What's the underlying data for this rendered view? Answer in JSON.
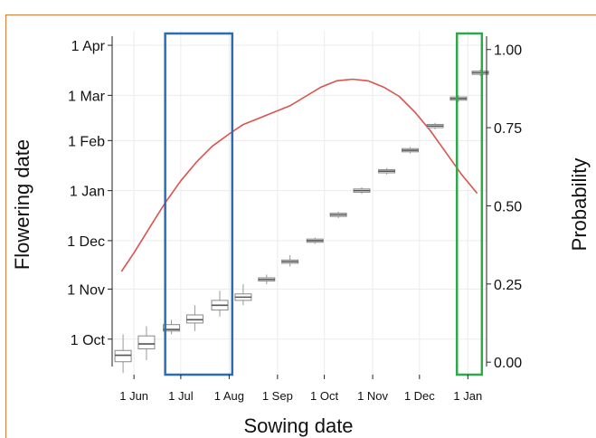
{
  "chart_data": {
    "type": "boxplot-with-line",
    "xlabel": "Sowing date",
    "ylabel_left": "Flowering date",
    "ylabel_right": "Probability",
    "x_ticks": [
      "1 Jun",
      "1 Jul",
      "1 Aug",
      "1 Sep",
      "1 Oct",
      "1 Nov",
      "1 Dec",
      "1 Jan"
    ],
    "x_tick_days": [
      0,
      30,
      61,
      92,
      122,
      153,
      183,
      214
    ],
    "x_range_days": [
      -14,
      226
    ],
    "y_left_ticks": [
      "1 Oct",
      "1 Nov",
      "1 Dec",
      "1 Jan",
      "1 Feb",
      "1 Mar",
      "1 Apr"
    ],
    "y_left_tick_days": [
      0,
      31,
      61,
      92,
      123,
      151,
      182
    ],
    "y_left_range_days": [
      -22,
      191
    ],
    "y_right_ticks": [
      "0.00",
      "0.25",
      "0.50",
      "0.75",
      "1.00"
    ],
    "y_right_tick_values": [
      0,
      0.25,
      0.5,
      0.75,
      1.0
    ],
    "y_right_range": [
      -0.04,
      1.06
    ],
    "grid": true,
    "boxplots": [
      {
        "sowing_day": -7,
        "median": -10,
        "q1": -14,
        "q3": -7,
        "whisker_low": -21,
        "whisker_high": 3
      },
      {
        "sowing_day": 8,
        "median": -3,
        "q1": -6,
        "q3": 2,
        "whisker_low": -13,
        "whisker_high": 8
      },
      {
        "sowing_day": 24,
        "median": 6,
        "q1": 5,
        "q3": 9,
        "whisker_low": 3,
        "whisker_high": 12
      },
      {
        "sowing_day": 39,
        "median": 12,
        "q1": 10,
        "q3": 15,
        "whisker_low": 5,
        "whisker_high": 21
      },
      {
        "sowing_day": 55,
        "median": 21,
        "q1": 18,
        "q3": 24,
        "whisker_low": 14,
        "whisker_high": 30
      },
      {
        "sowing_day": 70,
        "median": 26,
        "q1": 24,
        "q3": 28,
        "whisker_low": 21,
        "whisker_high": 34
      },
      {
        "sowing_day": 85,
        "median": 37,
        "q1": 36,
        "q3": 38,
        "whisker_low": 34,
        "whisker_high": 40
      },
      {
        "sowing_day": 100,
        "median": 48,
        "q1": 47,
        "q3": 49,
        "whisker_low": 45,
        "whisker_high": 52
      },
      {
        "sowing_day": 116,
        "median": 61,
        "q1": 60,
        "q3": 62,
        "whisker_low": 59,
        "whisker_high": 63
      },
      {
        "sowing_day": 131,
        "median": 77,
        "q1": 76,
        "q3": 78,
        "whisker_low": 75,
        "whisker_high": 79
      },
      {
        "sowing_day": 146,
        "median": 92,
        "q1": 91,
        "q3": 93,
        "whisker_low": 90,
        "whisker_high": 94
      },
      {
        "sowing_day": 162,
        "median": 104,
        "q1": 103,
        "q3": 105,
        "whisker_low": 102,
        "whisker_high": 106
      },
      {
        "sowing_day": 177,
        "median": 117,
        "q1": 116,
        "q3": 118,
        "whisker_low": 115,
        "whisker_high": 119
      },
      {
        "sowing_day": 193,
        "median": 132,
        "q1": 131,
        "q3": 133,
        "whisker_low": 130,
        "whisker_high": 134
      },
      {
        "sowing_day": 208,
        "median": 149,
        "q1": 148,
        "q3": 150,
        "whisker_low": 147,
        "whisker_high": 151
      },
      {
        "sowing_day": 222,
        "median": 165,
        "q1": 164,
        "q3": 166,
        "whisker_low": 163,
        "whisker_high": 167
      }
    ],
    "probability_line": {
      "color": "#d9534f",
      "x_days": [
        -8,
        0,
        10,
        20,
        30,
        40,
        50,
        61,
        70,
        80,
        90,
        100,
        110,
        120,
        130,
        140,
        150,
        160,
        170,
        180,
        190,
        200,
        210,
        220
      ],
      "y": [
        0.29,
        0.35,
        0.43,
        0.51,
        0.58,
        0.64,
        0.69,
        0.73,
        0.76,
        0.78,
        0.8,
        0.82,
        0.85,
        0.88,
        0.9,
        0.905,
        0.9,
        0.88,
        0.85,
        0.8,
        0.74,
        0.67,
        0.6,
        0.54
      ]
    },
    "highlights": [
      {
        "start_day": 20,
        "end_day": 63,
        "color": "#2a6db3"
      },
      {
        "start_day": 207,
        "end_day": 223,
        "color": "#2ea84a"
      }
    ]
  }
}
